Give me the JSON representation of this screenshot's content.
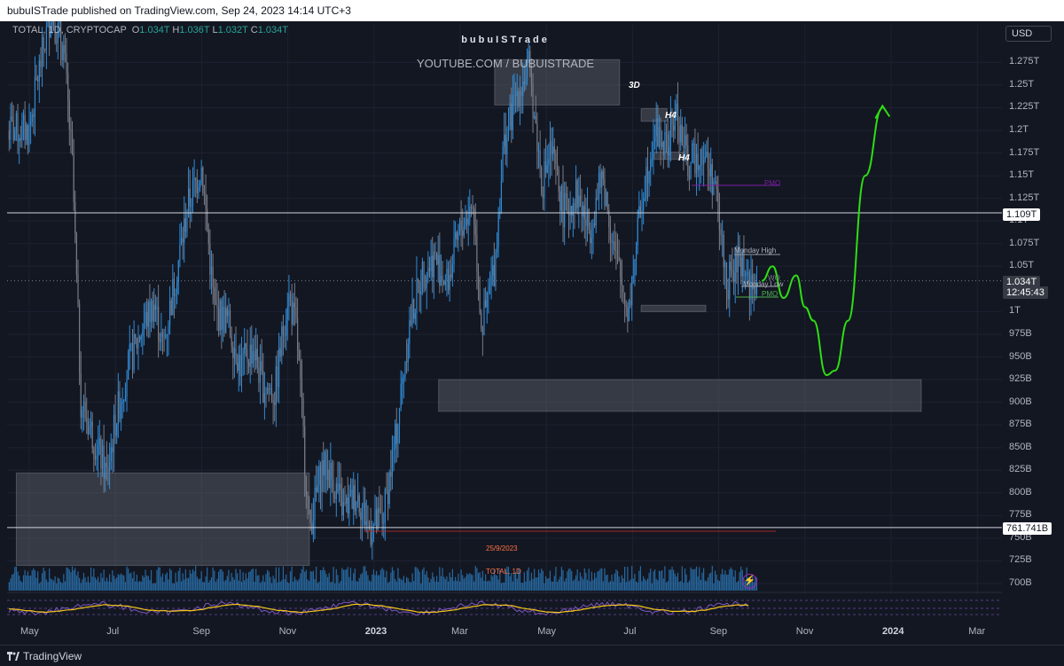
{
  "header": {
    "publisher_line": "bubuISTrade published on TradingView.com, Sep 24, 2023 14:14 UTC+3"
  },
  "legend": {
    "symbol": "TOTAL, 1D, CRYPTOCAP",
    "open_label": "O",
    "open": "1.034T",
    "high_label": "H",
    "high": "1.036T",
    "low_label": "L",
    "low": "1.032T",
    "close_label": "C",
    "close": "1.034T"
  },
  "watermark": {
    "name": "bubuISTrade",
    "url": "YOUTUBE.COM / BUBUISTRADE"
  },
  "currency_button": "USD",
  "price_tags": {
    "hline_upper": "1.109T",
    "last_price": "1.034T",
    "countdown": "12:45:43",
    "hline_lower": "761.741B"
  },
  "zones": {
    "label_3d": "3D",
    "label_h4_a": "H4",
    "label_h4_b": "H4"
  },
  "annotations": {
    "pmo_upper": "PMO",
    "monday_high": "Monday High",
    "wo": "WO",
    "monday_low": "Monday Low",
    "pmo_lower": "PMO",
    "date_note": "25/9/2023",
    "indicator_note": "TOTAL, 1D"
  },
  "footer": {
    "brand": "TradingView"
  },
  "colors": {
    "background": "#131722",
    "candles": "#2f8bd6",
    "zone": "#787b86",
    "projection": "#2ede14",
    "pmo": "#7b1fa2",
    "rsi": "#7e57c2",
    "rsi_ma": "#f5c518"
  },
  "chart_data": {
    "type": "line",
    "title": "TOTAL, 1D, CRYPTOCAP",
    "xlabel": "",
    "ylabel": "",
    "ylim": [
      690,
      1300
    ],
    "y_unit": "B",
    "x_tick_labels": [
      "May",
      "Jul",
      "Sep",
      "Nov",
      "2023",
      "Mar",
      "May",
      "Jul",
      "Sep",
      "Nov",
      "2024",
      "Mar"
    ],
    "y_tick_labels": [
      "1.275T",
      "1.25T",
      "1.225T",
      "1.2T",
      "1.175T",
      "1.15T",
      "1.125T",
      "1.1T",
      "1.075T",
      "1.05T",
      "1T",
      "975B",
      "950B",
      "925B",
      "900B",
      "875B",
      "850B",
      "825B",
      "800B",
      "775B",
      "750B",
      "725B",
      "700B"
    ],
    "y_tick_values": [
      1275,
      1250,
      1225,
      1200,
      1175,
      1150,
      1125,
      1100,
      1075,
      1050,
      1000,
      975,
      950,
      925,
      900,
      875,
      850,
      825,
      800,
      775,
      750,
      725,
      700
    ],
    "x_axis_months_since_may_2022": [
      0,
      2,
      4,
      6,
      8,
      10,
      12,
      14,
      16,
      18,
      20,
      22
    ],
    "series": [
      {
        "values_x_months": [
          0.0,
          0.2,
          0.5,
          0.8,
          1.0,
          1.2,
          1.5,
          1.8,
          2.0,
          2.3,
          2.6,
          2.9,
          3.1,
          3.4,
          3.7,
          4.0,
          4.3,
          4.6,
          4.9,
          5.2,
          5.4,
          5.7,
          6.0,
          6.2,
          6.5,
          6.8,
          7.0,
          7.3,
          7.6,
          7.9,
          8.2,
          8.5,
          8.8,
          9.1,
          9.4,
          9.7,
          10.0,
          10.3,
          10.5,
          10.8,
          11.0,
          11.3,
          11.6,
          11.9,
          12.1,
          12.4,
          12.7,
          13.0,
          13.3,
          13.6,
          13.9,
          14.2,
          14.5,
          14.8,
          15.0,
          15.3,
          15.6,
          15.9,
          16.2,
          16.5,
          16.8,
          16.9
        ],
        "values": [
          1200,
          1260,
          1330,
          1290,
          1160,
          900,
          860,
          820,
          880,
          940,
          980,
          1010,
          960,
          1040,
          1120,
          1160,
          1000,
          990,
          940,
          960,
          920,
          910,
          1020,
          980,
          760,
          830,
          820,
          780,
          800,
          760,
          770,
          860,
          980,
          1040,
          1060,
          1030,
          1090,
          1120,
          980,
          1050,
          1180,
          1240,
          1270,
          1140,
          1180,
          1110,
          1130,
          1090,
          1150,
          1060,
          1000,
          1120,
          1200,
          1180,
          1220,
          1160,
          1180,
          1140,
          1030,
          1060,
          1020,
          1034
        ]
      }
    ],
    "projection": {
      "x_months": [
        17.0,
        17.25,
        17.5,
        17.8,
        18.0,
        18.2,
        18.5,
        18.7,
        19.0,
        19.4,
        19.8
      ],
      "values": [
        1034,
        1050,
        1015,
        1040,
        1005,
        990,
        930,
        935,
        990,
        1150,
        1225
      ]
    },
    "zones": [
      {
        "label": "3D",
        "x_months": [
          10.8,
          13.7
        ],
        "y": [
          1228,
          1278
        ]
      },
      {
        "label": "H4",
        "x_months": [
          14.2,
          14.8
        ],
        "y": [
          1210,
          1224
        ]
      },
      {
        "label": "H4",
        "x_months": [
          14.5,
          15.2
        ],
        "y": [
          1168,
          1176
        ]
      },
      {
        "label": "",
        "x_months": [
          9.5,
          20.7
        ],
        "y": [
          890,
          925
        ]
      },
      {
        "label": "",
        "x_months": [
          -0.3,
          6.5
        ],
        "y": [
          720,
          822
        ]
      },
      {
        "label": "",
        "x_months": [
          14.2,
          15.7
        ],
        "y": [
          1000,
          1007
        ]
      }
    ],
    "hlines": [
      1109,
      761.741
    ],
    "last_value": 1034,
    "grid": true,
    "legend_position": "top-left"
  }
}
